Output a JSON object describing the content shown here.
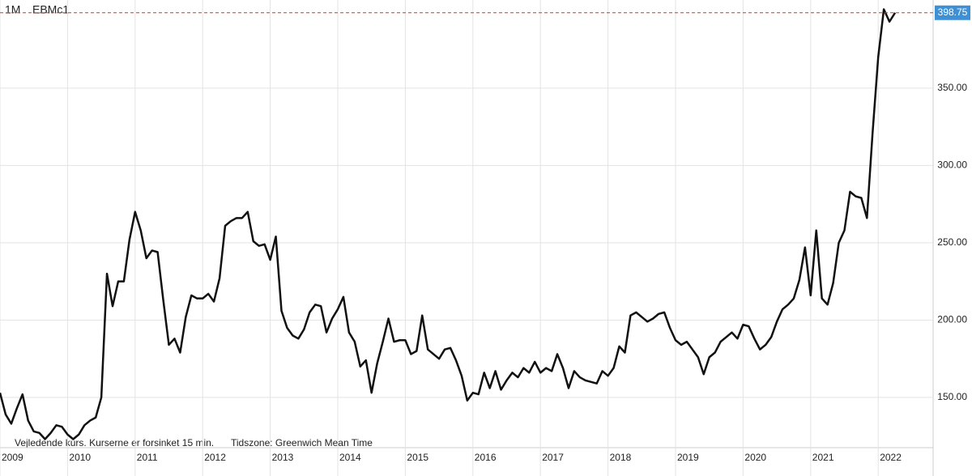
{
  "chart_data": {
    "type": "line",
    "ticker": "EBMc1",
    "interval": "1M",
    "note": "Vejledende kurs. Kurserne er forsinket 15 min.",
    "timezone": "Tidszone: Greenwich Mean Time",
    "categories": [
      "2009",
      null,
      null,
      null,
      null,
      null,
      null,
      null,
      null,
      null,
      null,
      null,
      "2010",
      null,
      null,
      null,
      null,
      null,
      null,
      null,
      null,
      null,
      null,
      null,
      "2011",
      null,
      null,
      null,
      null,
      null,
      null,
      null,
      null,
      null,
      null,
      null,
      "2012",
      null,
      null,
      null,
      null,
      null,
      null,
      null,
      null,
      null,
      null,
      null,
      "2013",
      null,
      null,
      null,
      null,
      null,
      null,
      null,
      null,
      null,
      null,
      null,
      "2014",
      null,
      null,
      null,
      null,
      null,
      null,
      null,
      null,
      null,
      null,
      null,
      "2015",
      null,
      null,
      null,
      null,
      null,
      null,
      null,
      null,
      null,
      null,
      null,
      "2016",
      null,
      null,
      null,
      null,
      null,
      null,
      null,
      null,
      null,
      null,
      null,
      "2017",
      null,
      null,
      null,
      null,
      null,
      null,
      null,
      null,
      null,
      null,
      null,
      "2018",
      null,
      null,
      null,
      null,
      null,
      null,
      null,
      null,
      null,
      null,
      null,
      "2019",
      null,
      null,
      null,
      null,
      null,
      null,
      null,
      null,
      null,
      null,
      null,
      "2020",
      null,
      null,
      null,
      null,
      null,
      null,
      null,
      null,
      null,
      null,
      null,
      "2021",
      null,
      null,
      null,
      null,
      null,
      null,
      null,
      null,
      null,
      null,
      null,
      "2022",
      null,
      null,
      null
    ],
    "series": [
      {
        "name": "EBMc1",
        "color": "#111111",
        "values": [
          153,
          139,
          133,
          143,
          152,
          135,
          128,
          127,
          123,
          127,
          132,
          131,
          126,
          123,
          126,
          132,
          135,
          137,
          150,
          230,
          209,
          225,
          225,
          252,
          270,
          258,
          240,
          245,
          244,
          213,
          184,
          188,
          179,
          202,
          216,
          214,
          214,
          217,
          212,
          227,
          261,
          264,
          266,
          266,
          270,
          251,
          248,
          249,
          239,
          254,
          206,
          195,
          190,
          188,
          194,
          205,
          210,
          209,
          192,
          201,
          207,
          215,
          192,
          186,
          170,
          174,
          153,
          172,
          186,
          201,
          186,
          187,
          187,
          178,
          180,
          203,
          181,
          178,
          175,
          181,
          182,
          174,
          164,
          148,
          153,
          152,
          166,
          156,
          167,
          155,
          161,
          166,
          163,
          169,
          166,
          173,
          166,
          169,
          167,
          178,
          169,
          156,
          167,
          163,
          161,
          160,
          159,
          167,
          164,
          169,
          183,
          179,
          203,
          205,
          202,
          199,
          201,
          204,
          205,
          195,
          187,
          184,
          186,
          181,
          176,
          165,
          176,
          179,
          186,
          189,
          192,
          188,
          197,
          196,
          188,
          181,
          184,
          189,
          199,
          207,
          210,
          214,
          226,
          247,
          216,
          258,
          214,
          210,
          224,
          250,
          258,
          283,
          280,
          279,
          266,
          321,
          370,
          401,
          393,
          398.75
        ]
      }
    ],
    "ylim": [
      117.5,
      407
    ],
    "yticks": [
      {
        "value": 150,
        "label": "150.00"
      },
      {
        "value": 200,
        "label": "200.00"
      },
      {
        "value": 250,
        "label": "250.00"
      },
      {
        "value": 300,
        "label": "300.00"
      },
      {
        "value": 350,
        "label": "350.00"
      }
    ],
    "grid": true,
    "last_value_line_color": "#d0333a",
    "last_value_label_color": "#3d8fd6"
  }
}
